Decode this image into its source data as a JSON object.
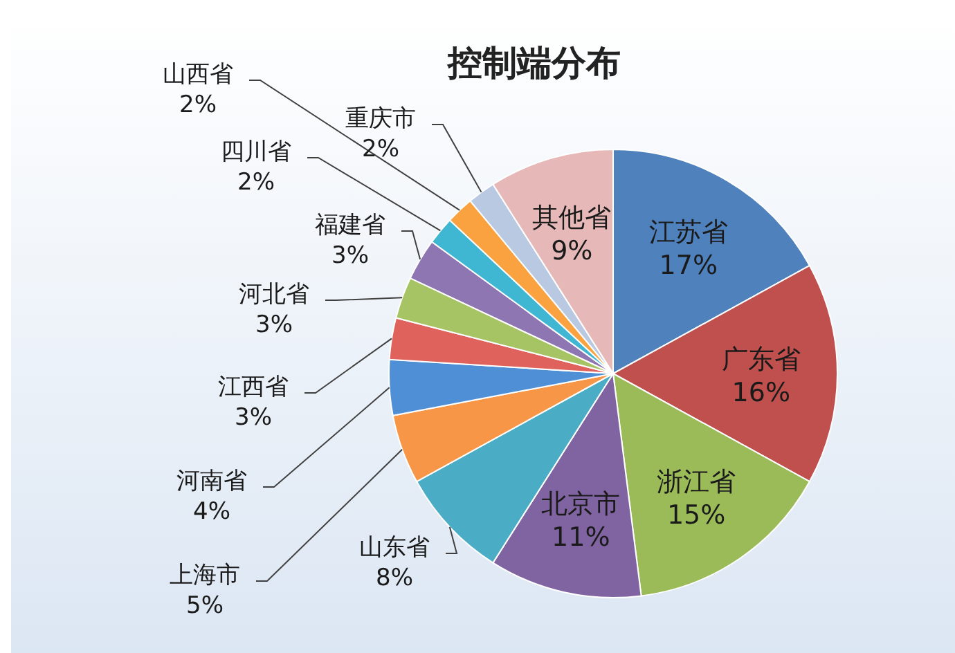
{
  "chart_data": {
    "type": "pie",
    "title": "控制端分布",
    "categories": [
      "江苏省",
      "广东省",
      "浙江省",
      "北京市",
      "山东省",
      "上海市",
      "河南省",
      "江西省",
      "河北省",
      "福建省",
      "四川省",
      "山西省",
      "重庆市",
      "其他省"
    ],
    "values": [
      17,
      16,
      15,
      11,
      8,
      5,
      4,
      3,
      3,
      3,
      2,
      2,
      2,
      9
    ],
    "value_labels": [
      "17%",
      "16%",
      "15%",
      "11%",
      "8%",
      "5%",
      "4%",
      "3%",
      "3%",
      "3%",
      "2%",
      "2%",
      "2%",
      "9%"
    ],
    "colors": [
      "#4f81bd",
      "#c0504d",
      "#9bbb59",
      "#8064a2",
      "#4bacc6",
      "#f79646",
      "#4f8fd6",
      "#e0625c",
      "#a7c465",
      "#8e76b2",
      "#3fb6d2",
      "#f9a23f",
      "#b9c9e2",
      "#e6b9b8"
    ]
  }
}
